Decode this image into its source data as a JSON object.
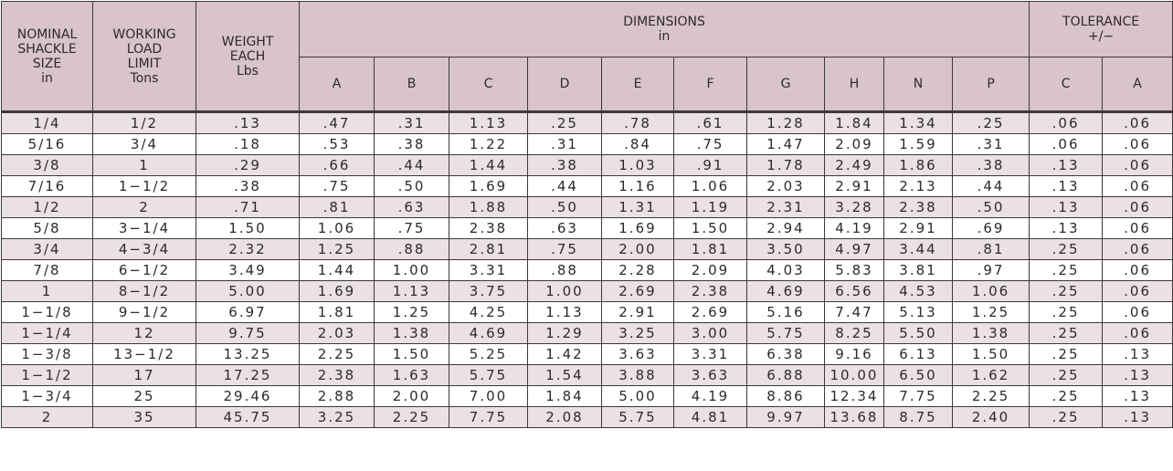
{
  "headers": {
    "size": "NOMINAL\nSHACKLE\nSIZE\nin",
    "wll": "WORKING\nLOAD\nLIMIT\nTons",
    "weight": "WEIGHT\nEACH\nLbs",
    "dimensions": "DIMENSIONS\nin",
    "tolerance": "TOLERANCE\n+/−",
    "dim_cols": [
      "A",
      "B",
      "C",
      "D",
      "E",
      "F",
      "G",
      "H",
      "N",
      "P"
    ],
    "tol_cols": [
      "C",
      "A"
    ]
  },
  "rows": [
    [
      "1/4",
      "1/2",
      ".13",
      ".47",
      ".31",
      "1.13",
      ".25",
      ".78",
      ".61",
      "1.28",
      "1.84",
      "1.34",
      ".25",
      ".06",
      ".06"
    ],
    [
      "5/16",
      "3/4",
      ".18",
      ".53",
      ".38",
      "1.22",
      ".31",
      ".84",
      ".75",
      "1.47",
      "2.09",
      "1.59",
      ".31",
      ".06",
      ".06"
    ],
    [
      "3/8",
      "1",
      ".29",
      ".66",
      ".44",
      "1.44",
      ".38",
      "1.03",
      ".91",
      "1.78",
      "2.49",
      "1.86",
      ".38",
      ".13",
      ".06"
    ],
    [
      "7/16",
      "1−1/2",
      ".38",
      ".75",
      ".50",
      "1.69",
      ".44",
      "1.16",
      "1.06",
      "2.03",
      "2.91",
      "2.13",
      ".44",
      ".13",
      ".06"
    ],
    [
      "1/2",
      "2",
      ".71",
      ".81",
      ".63",
      "1.88",
      ".50",
      "1.31",
      "1.19",
      "2.31",
      "3.28",
      "2.38",
      ".50",
      ".13",
      ".06"
    ],
    [
      "5/8",
      "3−1/4",
      "1.50",
      "1.06",
      ".75",
      "2.38",
      ".63",
      "1.69",
      "1.50",
      "2.94",
      "4.19",
      "2.91",
      ".69",
      ".13",
      ".06"
    ],
    [
      "3/4",
      "4−3/4",
      "2.32",
      "1.25",
      ".88",
      "2.81",
      ".75",
      "2.00",
      "1.81",
      "3.50",
      "4.97",
      "3.44",
      ".81",
      ".25",
      ".06"
    ],
    [
      "7/8",
      "6−1/2",
      "3.49",
      "1.44",
      "1.00",
      "3.31",
      ".88",
      "2.28",
      "2.09",
      "4.03",
      "5.83",
      "3.81",
      ".97",
      ".25",
      ".06"
    ],
    [
      "1",
      "8−1/2",
      "5.00",
      "1.69",
      "1.13",
      "3.75",
      "1.00",
      "2.69",
      "2.38",
      "4.69",
      "6.56",
      "4.53",
      "1.06",
      ".25",
      ".06"
    ],
    [
      "1−1/8",
      "9−1/2",
      "6.97",
      "1.81",
      "1.25",
      "4.25",
      "1.13",
      "2.91",
      "2.69",
      "5.16",
      "7.47",
      "5.13",
      "1.25",
      ".25",
      ".06"
    ],
    [
      "1−1/4",
      "12",
      "9.75",
      "2.03",
      "1.38",
      "4.69",
      "1.29",
      "3.25",
      "3.00",
      "5.75",
      "8.25",
      "5.50",
      "1.38",
      ".25",
      ".06"
    ],
    [
      "1−3/8",
      "13−1/2",
      "13.25",
      "2.25",
      "1.50",
      "5.25",
      "1.42",
      "3.63",
      "3.31",
      "6.38",
      "9.16",
      "6.13",
      "1.50",
      ".25",
      ".13"
    ],
    [
      "1−1/2",
      "17",
      "17.25",
      "2.38",
      "1.63",
      "5.75",
      "1.54",
      "3.88",
      "3.63",
      "6.88",
      "10.00",
      "6.50",
      "1.62",
      ".25",
      ".13"
    ],
    [
      "1−3/4",
      "25",
      "29.46",
      "2.88",
      "2.00",
      "7.00",
      "1.84",
      "5.00",
      "4.19",
      "8.86",
      "12.34",
      "7.75",
      "2.25",
      ".25",
      ".13"
    ],
    [
      "2",
      "35",
      "45.75",
      "3.25",
      "2.25",
      "7.75",
      "2.08",
      "5.75",
      "4.81",
      "9.97",
      "13.68",
      "8.75",
      "2.40",
      ".25",
      ".13"
    ]
  ],
  "colors": {
    "header_bg": "#d9c3cc",
    "row_alt_bg": "#ebe0e5",
    "row_bg": "#ffffff",
    "border": "#3a3a3a"
  }
}
